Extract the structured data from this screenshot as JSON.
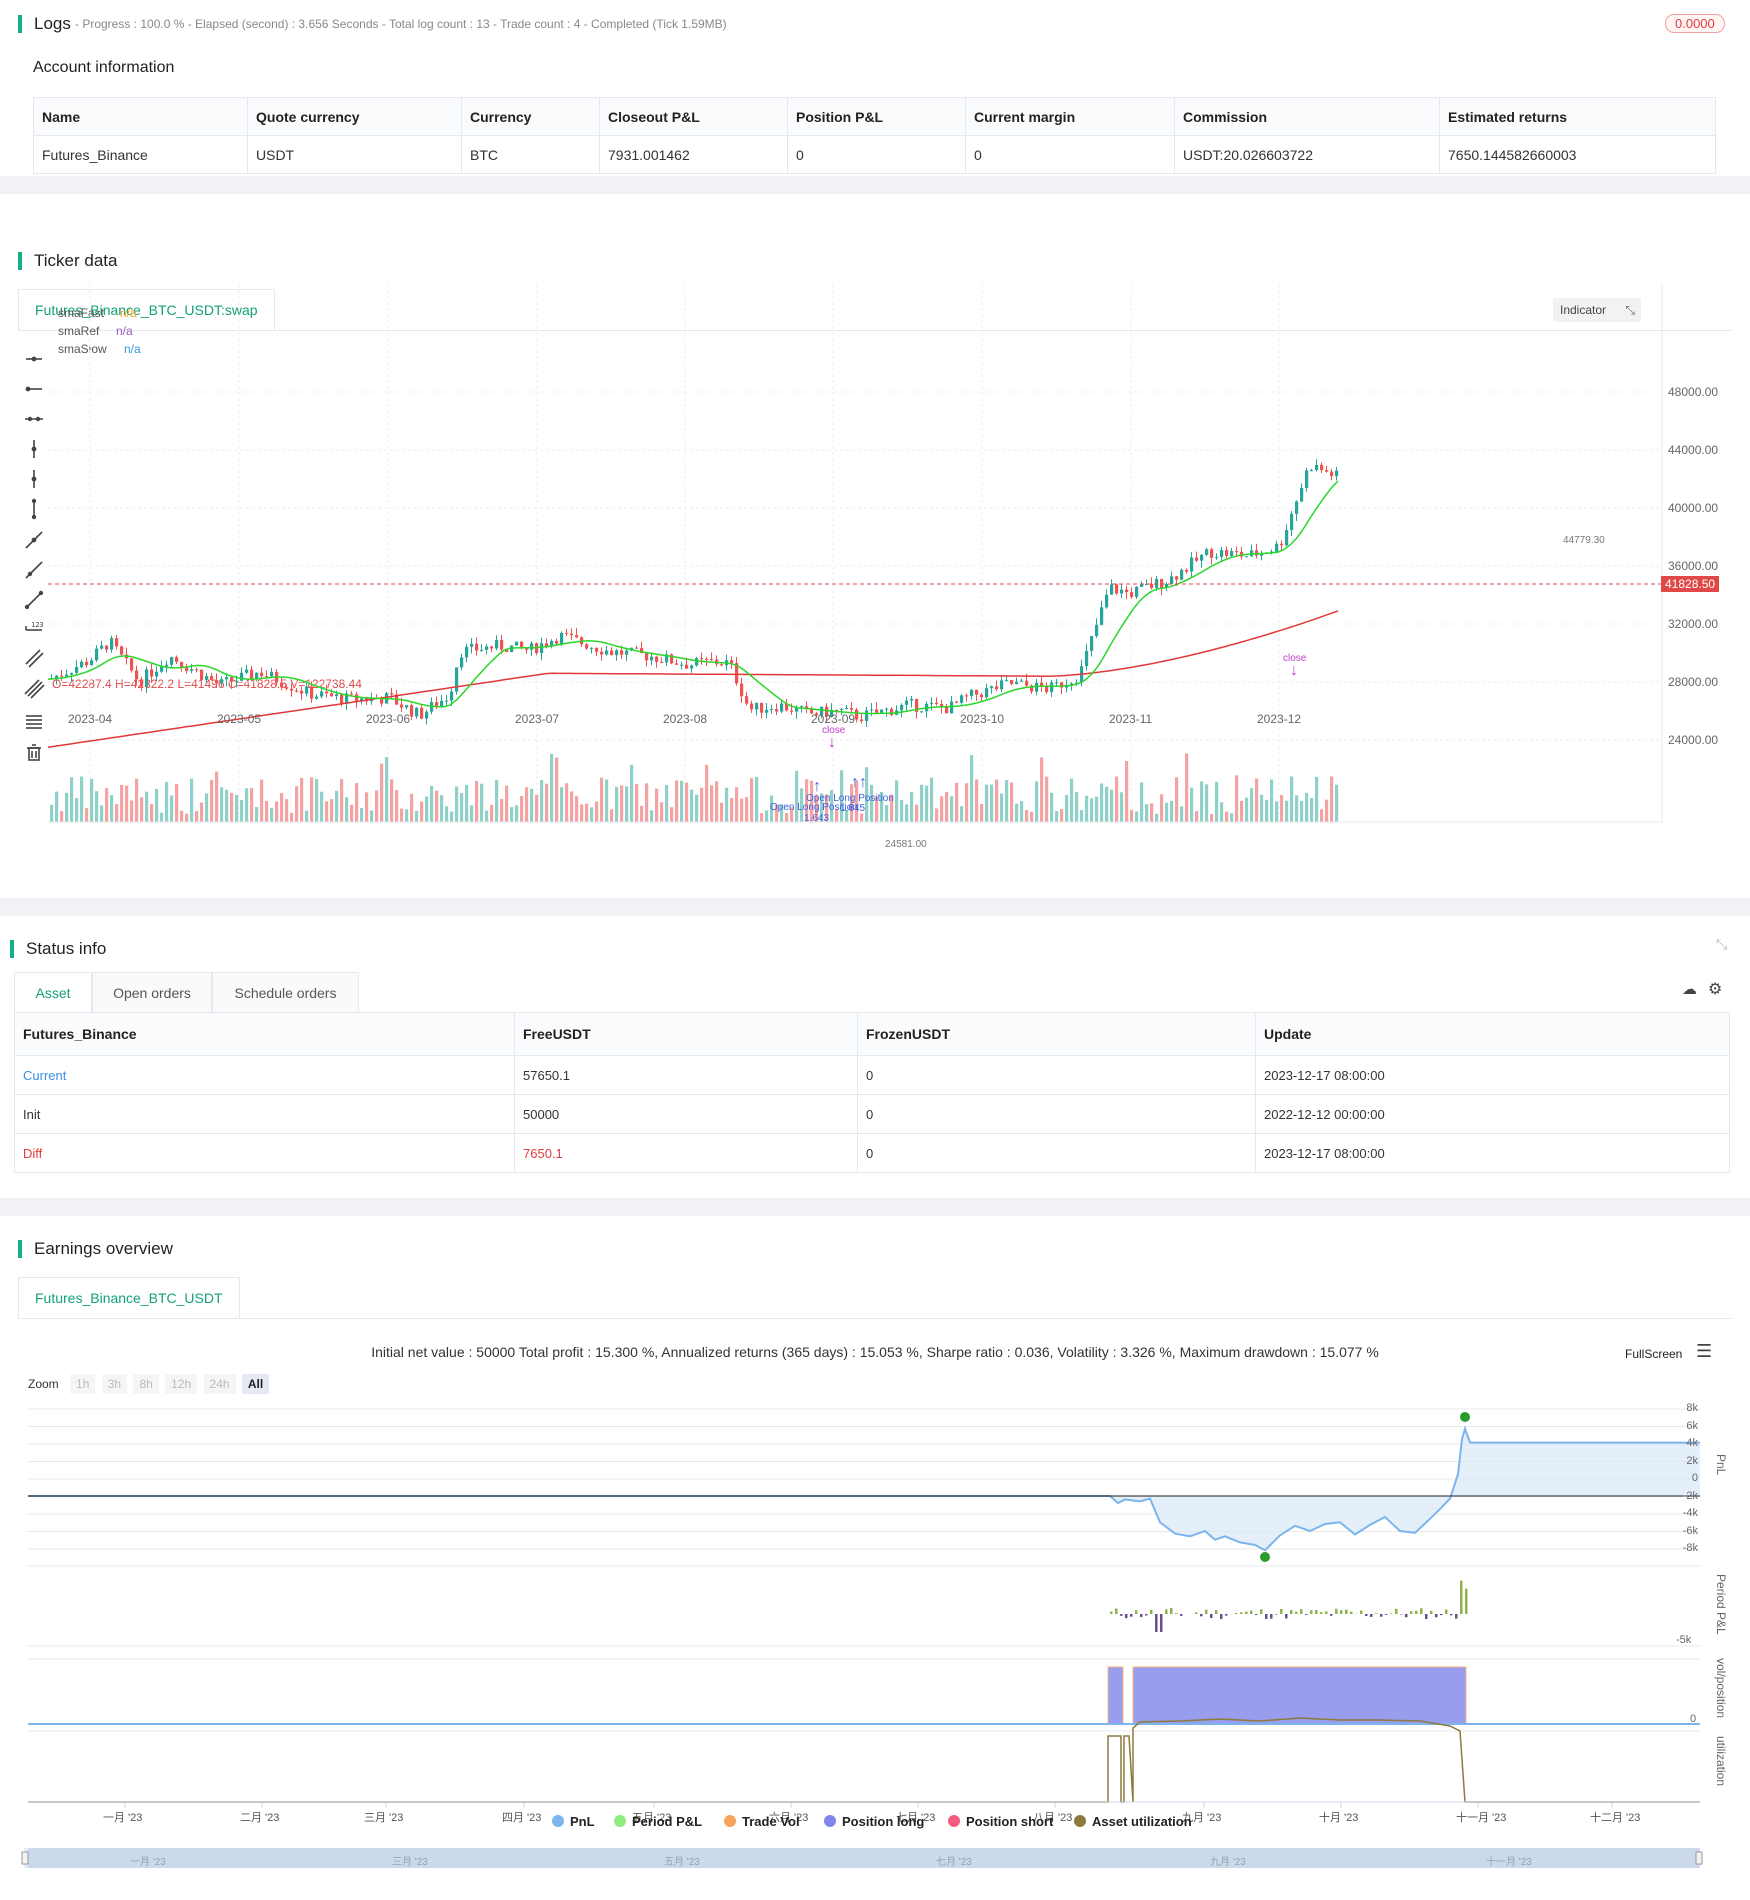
{
  "logs": {
    "title": "Logs",
    "progress_text": "- Progress : 100.0 % - Elapsed (second) : 3.656  Seconds - Total log count : 13 - Trade count : 4 - Completed (Tick 1.59MB)",
    "badge": "0.0000"
  },
  "account": {
    "title": "Account information",
    "headers": [
      "Name",
      "Quote currency",
      "Currency",
      "Closeout P&L",
      "Position P&L",
      "Current margin",
      "Commission",
      "Estimated returns"
    ],
    "row": [
      "Futures_Binance",
      "USDT",
      "BTC",
      "7931.001462",
      "0",
      "0",
      "USDT:20.026603722",
      "7650.144582660003"
    ]
  },
  "ticker": {
    "title": "Ticker data",
    "tab": "Futures_Binance_BTC_USDT:swap",
    "ohlc": "O=42287.4 H=42322.2 L=41496 C=41828.5 V=122738.44",
    "indicators": [
      {
        "name": "smaFast",
        "value": "n/a",
        "color": "#f5a623"
      },
      {
        "name": "smaRef",
        "value": "n/a",
        "color": "#9b59b6"
      },
      {
        "name": "smaSlow",
        "value": "n/a",
        "color": "#3498db"
      }
    ],
    "indicator_btn": "Indicator",
    "price_ticks": [
      "48000.00",
      "44000.00",
      "40000.00",
      "36000.00",
      "32000.00",
      "28000.00",
      "24000.00"
    ],
    "last_price": "41828.50",
    "date_ticks": [
      "2023-04",
      "2023-05",
      "2023-06",
      "2023-07",
      "2023-08",
      "2023-09",
      "2023-10",
      "2023-11",
      "2023-12"
    ],
    "high_label": "44779.30",
    "low_label": "24581.00",
    "annotations": {
      "close1": "close",
      "close2": "close",
      "open_long_a": "Open Long Position",
      "open_long_b": "Open Long Position",
      "val_a": "1.643",
      "val_b": "1.645"
    }
  },
  "status": {
    "title": "Status info",
    "tabs": [
      "Asset",
      "Open orders",
      "Schedule orders"
    ],
    "headers": [
      "Futures_Binance",
      "FreeUSDT",
      "FrozenUSDT",
      "Update"
    ],
    "rows": [
      [
        "Current",
        "57650.1",
        "0",
        "2023-12-17 08:00:00"
      ],
      [
        "Init",
        "50000",
        "0",
        "2022-12-12 00:00:00"
      ],
      [
        "Diff",
        "7650.1",
        "0",
        "2023-12-17 08:00:00"
      ]
    ]
  },
  "earnings": {
    "title": "Earnings overview",
    "tab": "Futures_Binance_BTC_USDT",
    "summary": "Initial net value : 50000 Total profit : 15.300 %, Annualized returns (365 days) : 15.053 %, Sharpe ratio : 0.036, Volatility : 3.326 %, Maximum drawdown : 15.077 %",
    "fullscreen": "FullScreen",
    "zoom_label": "Zoom",
    "zoom_buttons": [
      "1h",
      "3h",
      "8h",
      "12h",
      "24h",
      "All"
    ],
    "pnl_ticks": [
      "8k",
      "6k",
      "4k",
      "2k",
      "0",
      "-2k",
      "-4k",
      "-6k",
      "-8k"
    ],
    "period_ticks": [
      "-5k"
    ],
    "vol_ticks": [
      "0"
    ],
    "axis_titles": [
      "PnL",
      "Period P&L",
      "vol/position",
      "utilization"
    ],
    "month_ticks": [
      "一月 '23",
      "二月 '23",
      "三月 '23",
      "四月 '23",
      "五月 '23",
      "六月 '23",
      "七月 '23",
      "八月 '23",
      "九月 '23",
      "十月 '23",
      "十一月 '23",
      "十二月 '23"
    ],
    "nav_ticks": [
      "一月 '23",
      "三月 '23",
      "五月 '23",
      "七月 '23",
      "九月 '23",
      "十一月 '23"
    ],
    "legend": [
      {
        "name": "PnL",
        "color": "#7cb5ec"
      },
      {
        "name": "Period P&L",
        "color": "#90ed7d"
      },
      {
        "name": "Trade Vol",
        "color": "#f7a35c"
      },
      {
        "name": "Position long",
        "color": "#8085e9"
      },
      {
        "name": "Position short",
        "color": "#f15c80"
      },
      {
        "name": "Asset utilization",
        "color": "#8d7a3c"
      }
    ]
  }
}
